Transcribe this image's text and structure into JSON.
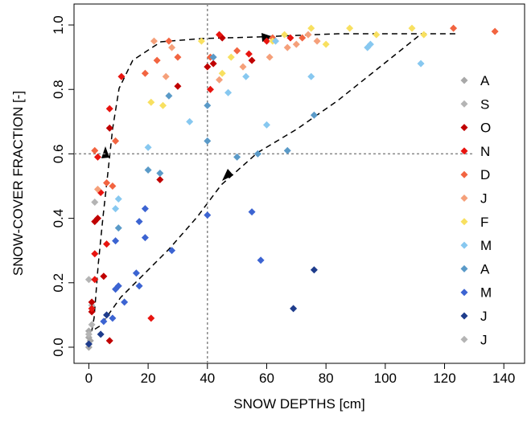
{
  "chart_data": {
    "type": "scatter",
    "xlabel": "SNOW DEPTHS [cm]",
    "ylabel": "SNOW-COVER FRACTION [-]",
    "xlim": [
      -5,
      147
    ],
    "ylim": [
      -0.05,
      1.065
    ],
    "xticks": [
      0,
      20,
      40,
      60,
      80,
      100,
      120,
      140
    ],
    "yticks": [
      {
        "value": 0,
        "label": "0.0"
      },
      0.2,
      0.4,
      0.6,
      0.8,
      {
        "value": 1,
        "label": "1.0"
      }
    ],
    "vlines": [
      40
    ],
    "hlines": [
      0.6
    ],
    "series": [
      {
        "name": "A",
        "color": "#a8a8a8",
        "x": [
          0,
          0,
          0,
          0.5
        ],
        "values": [
          0.0,
          0.03,
          0.05,
          0.02
        ]
      },
      {
        "name": "S",
        "color": "#b4b4b4",
        "x": [
          0,
          1,
          2,
          0
        ],
        "values": [
          0.21,
          0.13,
          0.45,
          0.01
        ]
      },
      {
        "name": "O",
        "color": "#c00000",
        "x": [
          1,
          1,
          2,
          3,
          5,
          7,
          7,
          24,
          30,
          40,
          42,
          55,
          45
        ],
        "values": [
          0.14,
          0.11,
          0.39,
          0.4,
          0.22,
          0.02,
          0.68,
          0.52,
          0.81,
          0.87,
          0.88,
          0.89,
          0.96
        ]
      },
      {
        "name": "N",
        "color": "#e8140f",
        "x": [
          1,
          2,
          2,
          3,
          4,
          6,
          7,
          11,
          21,
          44,
          41,
          54,
          60,
          68
        ],
        "values": [
          0.12,
          0.21,
          0.29,
          0.59,
          0.48,
          0.32,
          0.74,
          0.84,
          0.09,
          0.97,
          0.8,
          0.91,
          0.95,
          0.96
        ]
      },
      {
        "name": "D",
        "color": "#f26440",
        "x": [
          2,
          6,
          8,
          9,
          19,
          23,
          27,
          30,
          41,
          50,
          62,
          72,
          123,
          137
        ],
        "values": [
          0.61,
          0.51,
          0.5,
          0.64,
          0.85,
          0.89,
          0.95,
          0.9,
          0.9,
          0.92,
          0.96,
          0.96,
          0.99,
          0.98
        ]
      },
      {
        "name": "J",
        "color": "#f5a07a",
        "x": [
          3,
          22,
          26,
          28,
          44,
          52,
          61,
          67,
          70,
          74,
          77
        ],
        "values": [
          0.49,
          0.95,
          0.84,
          0.93,
          0.83,
          0.87,
          0.9,
          0.93,
          0.94,
          0.97,
          0.95
        ]
      },
      {
        "name": "F",
        "color": "#f8e060",
        "x": [
          21,
          25,
          38,
          45,
          48,
          62,
          66,
          75,
          80,
          88,
          97,
          109,
          113
        ],
        "values": [
          0.76,
          0.75,
          0.95,
          0.85,
          0.9,
          0.95,
          0.97,
          0.99,
          0.94,
          0.99,
          0.97,
          0.99,
          0.97
        ]
      },
      {
        "name": "M",
        "color": "#87c8f0",
        "x": [
          10,
          9,
          20,
          34,
          47,
          60,
          53,
          63,
          75,
          94,
          112,
          95
        ],
        "values": [
          0.46,
          0.43,
          0.62,
          0.7,
          0.79,
          0.69,
          0.84,
          0.95,
          0.84,
          0.93,
          0.88,
          0.94
        ]
      },
      {
        "name": "A",
        "color": "#5a9ac8",
        "x": [
          10,
          20,
          24,
          27,
          40,
          40,
          50,
          57,
          67,
          76,
          42
        ],
        "values": [
          0.37,
          0.55,
          0.54,
          0.78,
          0.75,
          0.64,
          0.59,
          0.6,
          0.61,
          0.72,
          0.9
        ]
      },
      {
        "name": "M",
        "color": "#3c64d2",
        "x": [
          5,
          8,
          9,
          10,
          12,
          16,
          17,
          17,
          19,
          19,
          28,
          40,
          55,
          58,
          9
        ],
        "values": [
          0.08,
          0.09,
          0.33,
          0.19,
          0.14,
          0.23,
          0.19,
          0.39,
          0.43,
          0.34,
          0.3,
          0.41,
          0.42,
          0.27,
          0.18
        ]
      },
      {
        "name": "J",
        "color": "#1e3c8c",
        "x": [
          0,
          4,
          6,
          69,
          76
        ],
        "values": [
          0.01,
          0.04,
          0.1,
          0.12,
          0.24
        ]
      },
      {
        "name": "J",
        "color": "#b4b4b4",
        "x": [
          0,
          1
        ],
        "values": [
          0.04,
          0.07
        ]
      }
    ]
  }
}
